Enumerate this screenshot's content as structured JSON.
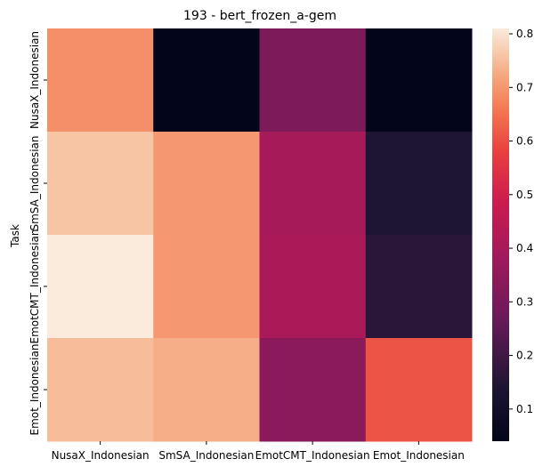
{
  "chart_data": {
    "type": "heatmap",
    "title": "193 - bert_frozen_a-gem",
    "xlabel": "",
    "ylabel": "Task",
    "x_categories": [
      "NusaX_Indonesian",
      "SmSA_Indonesian",
      "EmotCMT_Indonesian",
      "Emot_Indonesian"
    ],
    "y_categories": [
      "NusaX_Indonesian",
      "SmSA_Indonesian",
      "EmotCMT_Indonesian",
      "Emot_Indonesian"
    ],
    "values": [
      [
        0.69,
        0.04,
        0.31,
        0.04
      ],
      [
        0.76,
        0.7,
        0.4,
        0.14
      ],
      [
        0.81,
        0.7,
        0.41,
        0.16
      ],
      [
        0.75,
        0.73,
        0.34,
        0.61
      ]
    ],
    "colorbar": {
      "range": [
        0.04,
        0.81
      ],
      "ticks": [
        "0.1",
        "0.2",
        "0.3",
        "0.4",
        "0.5",
        "0.6",
        "0.7",
        "0.8"
      ],
      "tick_values": [
        0.1,
        0.2,
        0.3,
        0.4,
        0.5,
        0.6,
        0.7,
        0.8
      ]
    },
    "colormap": "rocket",
    "colormap_stops": [
      [
        0.0,
        "#03051a"
      ],
      [
        0.13,
        "#1d1532"
      ],
      [
        0.3,
        "#6a1a5a"
      ],
      [
        0.45,
        "#a11a5b"
      ],
      [
        0.58,
        "#cb1b4f"
      ],
      [
        0.7,
        "#e83f3f"
      ],
      [
        0.8,
        "#f37651"
      ],
      [
        0.88,
        "#f6a47c"
      ],
      [
        0.94,
        "#f7c8a8"
      ],
      [
        1.0,
        "#faebdd"
      ]
    ]
  }
}
